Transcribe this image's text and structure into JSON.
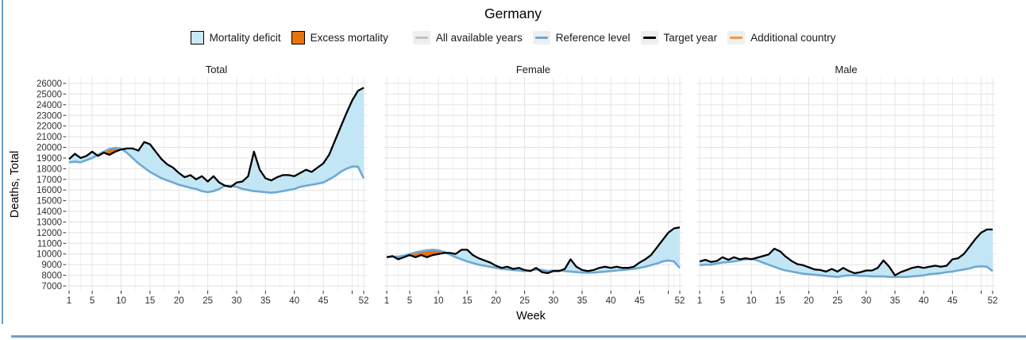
{
  "border_color": "#6F9FC6",
  "chart_data": {
    "type": "area",
    "title": "Germany",
    "xlabel": "Week",
    "ylabel": "Deaths, Total",
    "xlim": [
      1,
      52
    ],
    "ylim": [
      7000,
      26000
    ],
    "grid": "on",
    "legend_position": "top",
    "x_ticks_labeled": [
      1,
      5,
      10,
      15,
      20,
      25,
      30,
      35,
      40,
      45,
      52
    ],
    "x_ticks_unlabeled": [
      50
    ],
    "y_ticks": [
      7000,
      8000,
      9000,
      10000,
      11000,
      12000,
      13000,
      14000,
      15000,
      16000,
      17000,
      18000,
      19000,
      20000,
      21000,
      22000,
      23000,
      24000,
      25000,
      26000
    ],
    "weeks": [
      1,
      2,
      3,
      4,
      5,
      6,
      7,
      8,
      9,
      10,
      11,
      12,
      13,
      14,
      15,
      16,
      17,
      18,
      19,
      20,
      21,
      22,
      23,
      24,
      25,
      26,
      27,
      28,
      29,
      30,
      31,
      32,
      33,
      34,
      35,
      36,
      37,
      38,
      39,
      40,
      41,
      42,
      43,
      44,
      45,
      46,
      47,
      48,
      49,
      50,
      51,
      52
    ],
    "series_names": [
      "Target year",
      "Reference level"
    ],
    "panels": [
      {
        "title": "Total",
        "target": [
          18900,
          19400,
          19000,
          19200,
          19600,
          19200,
          19500,
          19300,
          19600,
          19800,
          19900,
          19900,
          19700,
          20500,
          20300,
          19600,
          18900,
          18400,
          18100,
          17600,
          17200,
          17400,
          17000,
          17300,
          16800,
          17300,
          16700,
          16400,
          16300,
          16700,
          16800,
          17300,
          19600,
          17900,
          17100,
          16900,
          17200,
          17400,
          17400,
          17300,
          17600,
          17900,
          17700,
          18100,
          18500,
          19300,
          20600,
          21900,
          23200,
          24400,
          25300,
          25600
        ],
        "reference": [
          18600,
          18650,
          18600,
          18800,
          19000,
          19300,
          19600,
          19850,
          19950,
          19900,
          19500,
          19000,
          18500,
          18100,
          17700,
          17400,
          17100,
          16900,
          16700,
          16500,
          16350,
          16200,
          16100,
          15900,
          15800,
          15900,
          16100,
          16400,
          16400,
          16300,
          16100,
          16000,
          15900,
          15850,
          15800,
          15750,
          15800,
          15900,
          16000,
          16100,
          16300,
          16400,
          16500,
          16600,
          16700,
          17000,
          17300,
          17700,
          18000,
          18200,
          18200,
          17100
        ]
      },
      {
        "title": "Female",
        "target": [
          9700,
          9800,
          9500,
          9700,
          9900,
          9700,
          9900,
          9700,
          9900,
          10000,
          10100,
          10100,
          10000,
          10400,
          10400,
          9900,
          9600,
          9400,
          9200,
          8900,
          8700,
          8800,
          8600,
          8700,
          8500,
          8400,
          8700,
          8300,
          8200,
          8400,
          8400,
          8600,
          9500,
          8800,
          8500,
          8400,
          8500,
          8700,
          8800,
          8700,
          8800,
          8700,
          8700,
          8800,
          9200,
          9500,
          9900,
          10600,
          11300,
          12000,
          12400,
          12500
        ],
        "reference": [
          9700,
          9750,
          9750,
          9850,
          10000,
          10150,
          10250,
          10350,
          10400,
          10350,
          10200,
          9950,
          9700,
          9500,
          9300,
          9150,
          9000,
          8900,
          8800,
          8700,
          8600,
          8550,
          8500,
          8450,
          8400,
          8450,
          8550,
          8500,
          8400,
          8450,
          8450,
          8400,
          8350,
          8300,
          8250,
          8250,
          8250,
          8300,
          8350,
          8400,
          8450,
          8500,
          8550,
          8600,
          8700,
          8800,
          8950,
          9100,
          9300,
          9400,
          9300,
          8700
        ]
      },
      {
        "title": "Male",
        "target": [
          9300,
          9450,
          9250,
          9350,
          9700,
          9450,
          9700,
          9500,
          9600,
          9500,
          9650,
          9800,
          9950,
          10500,
          10250,
          9750,
          9350,
          9050,
          8950,
          8750,
          8550,
          8500,
          8350,
          8600,
          8350,
          8700,
          8400,
          8200,
          8300,
          8450,
          8450,
          8700,
          9400,
          8800,
          8000,
          8300,
          8500,
          8700,
          8800,
          8700,
          8800,
          8900,
          8800,
          8900,
          9500,
          9600,
          10000,
          10700,
          11400,
          12000,
          12300,
          12300
        ],
        "reference": [
          8950,
          9000,
          9000,
          9100,
          9200,
          9250,
          9300,
          9400,
          9500,
          9550,
          9400,
          9200,
          9000,
          8800,
          8600,
          8450,
          8350,
          8250,
          8150,
          8100,
          8050,
          8000,
          7950,
          7900,
          7850,
          7950,
          8000,
          8000,
          7950,
          7950,
          7900,
          7900,
          7900,
          7850,
          7850,
          7850,
          7850,
          7900,
          7950,
          8000,
          8100,
          8150,
          8200,
          8300,
          8350,
          8450,
          8550,
          8650,
          8800,
          8850,
          8800,
          8400
        ]
      }
    ],
    "legend": [
      {
        "label": "Mortality deficit",
        "swatch": "fill",
        "color": "#C9E9F7",
        "group": "fills"
      },
      {
        "label": "Excess mortality",
        "swatch": "fill",
        "color": "#E8720C",
        "group": "fills"
      },
      {
        "label": "All available years",
        "swatch": "line",
        "color": "#C2C2C2",
        "group": "lines"
      },
      {
        "label": "Reference level",
        "swatch": "line",
        "color": "#6FA8D4",
        "group": "lines"
      },
      {
        "label": "Target year",
        "swatch": "line",
        "color": "#000000",
        "group": "lines"
      },
      {
        "label": "Additional country",
        "swatch": "line",
        "color": "#EF9A49",
        "group": "lines"
      }
    ],
    "colors": {
      "excess_fill": "#E8720C",
      "deficit_fill": "#C3E6F5",
      "target_line": "#000000",
      "reference_line": "#6FA8D4",
      "grid_major": "#E4E4E4",
      "grid_minor": "#F2F2F2",
      "axis_text": "#303030"
    }
  }
}
